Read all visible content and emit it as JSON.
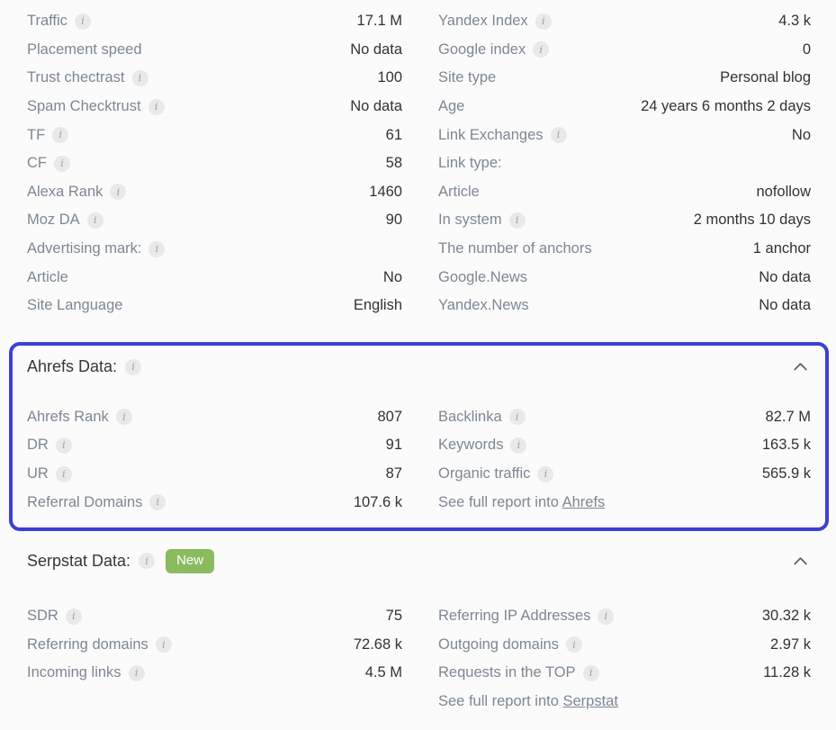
{
  "icons": {
    "info_glyph": "i"
  },
  "colors": {
    "accent_border": "#3e3fd8",
    "badge_green": "#8abb5f",
    "label_grey": "#7d8793",
    "value_dark": "#2f3337"
  },
  "overview": {
    "left": [
      {
        "label": "Traffic",
        "value": "17.1 M"
      },
      {
        "label": "Placement speed",
        "value": "No data"
      },
      {
        "label": "Trust chectrast",
        "value": "100"
      },
      {
        "label": "Spam Checktrust",
        "value": "No data"
      },
      {
        "label": "TF",
        "value": "61"
      },
      {
        "label": "CF",
        "value": "58"
      },
      {
        "label": "Alexa Rank",
        "value": "1460"
      },
      {
        "label": "Moz DA",
        "value": "90"
      },
      {
        "label": "Advertising mark:",
        "value": ""
      },
      {
        "label": "Article",
        "value": "No"
      },
      {
        "label": "Site Language",
        "value": "English"
      }
    ],
    "right": [
      {
        "label": "Yandex Index",
        "value": "4.3 k"
      },
      {
        "label": "Google index",
        "value": "0"
      },
      {
        "label": "Site type",
        "value": "Personal blog"
      },
      {
        "label": "Age",
        "value": "24 years 6 months 2 days"
      },
      {
        "label": "Link Exchanges",
        "value": "No"
      },
      {
        "label": "Link type:",
        "value": ""
      },
      {
        "label": "Article",
        "value": "nofollow"
      },
      {
        "label": "In system",
        "value": "2 months 10 days"
      },
      {
        "label": "The number of anchors",
        "value": "1 anchor"
      },
      {
        "label": "Google.News",
        "value": "No data"
      },
      {
        "label": "Yandex.News",
        "value": "No data"
      }
    ]
  },
  "ahrefs": {
    "title": "Ahrefs Data:",
    "left": [
      {
        "label": "Ahrefs Rank",
        "value": "807"
      },
      {
        "label": "DR",
        "value": "91"
      },
      {
        "label": "UR",
        "value": "87"
      },
      {
        "label": "Referral Domains",
        "value": "107.6 k"
      }
    ],
    "right": [
      {
        "label": "Backlinka",
        "value": "82.7 M"
      },
      {
        "label": "Keywords",
        "value": "163.5 k"
      },
      {
        "label": "Organic traffic",
        "value": "565.9 k"
      }
    ],
    "report": {
      "prefix": "See full report into ",
      "link_label": "Ahrefs"
    }
  },
  "serpstat": {
    "title": "Serpstat Data:",
    "badge": "New",
    "left": [
      {
        "label": "SDR",
        "value": "75"
      },
      {
        "label": "Referring domains",
        "value": "72.68 k"
      },
      {
        "label": "Incoming links",
        "value": "4.5 M"
      }
    ],
    "right": [
      {
        "label": "Referring IP Addresses",
        "value": "30.32 k"
      },
      {
        "label": "Outgoing domains",
        "value": "2.97 k"
      },
      {
        "label": "Requests in the TOP",
        "value": "11.28 k"
      }
    ],
    "report": {
      "prefix": "See full report into ",
      "link_label": "Serpstat"
    }
  }
}
